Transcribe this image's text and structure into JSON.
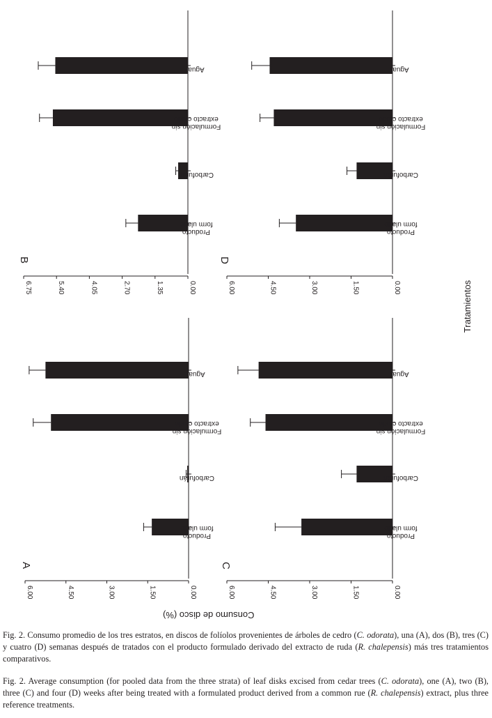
{
  "figure": {
    "y_axis_label": "Consumo de disco (%)",
    "x_axis_label": "Tratamientos"
  },
  "chart_data": [
    {
      "type": "bar",
      "panel": "A",
      "categories": [
        "Producto form ulado",
        "Carbofurán",
        "Formulación sin extracto crudo",
        "Agua"
      ],
      "values": [
        1.35,
        0.05,
        5.05,
        5.25
      ],
      "errors": [
        0.3,
        0.04,
        0.65,
        0.6
      ],
      "ylim": [
        0,
        6
      ],
      "yticks": [
        "6.00",
        "4.50",
        "3.00",
        "1.50",
        "0.00"
      ],
      "xlabel": "Tratamientos",
      "ylabel": "Consumo de disco (%)"
    },
    {
      "type": "bar",
      "panel": "B",
      "categories": [
        "Producto form ulado",
        "Carbofurán",
        "Formulación sin extracto crudo",
        "Agua"
      ],
      "values": [
        2.05,
        0.4,
        5.55,
        5.45
      ],
      "errors": [
        0.5,
        0.1,
        0.55,
        0.7
      ],
      "ylim": [
        0,
        6.75
      ],
      "yticks": [
        "6.75",
        "5.40",
        "4.05",
        "2.70",
        "1.35",
        "0.00"
      ],
      "xlabel": "Tratamientos",
      "ylabel": "Consumo de disco (%)"
    },
    {
      "type": "bar",
      "panel": "C",
      "categories": [
        "Producto form ulado",
        "Carbofurán",
        "Formulación sin extracto crudo",
        "Agua"
      ],
      "values": [
        3.3,
        1.3,
        4.6,
        4.85
      ],
      "errors": [
        0.95,
        0.55,
        0.55,
        0.75
      ],
      "ylim": [
        0,
        6
      ],
      "yticks": [
        "6.00",
        "4.50",
        "3.00",
        "1.50",
        "0.00"
      ],
      "xlabel": "Tratamientos",
      "ylabel": "Consumo de disco (%)"
    },
    {
      "type": "bar",
      "panel": "D",
      "categories": [
        "Producto form ulado",
        "Carbofurán",
        "Formulación sin extracto crudo",
        "Agua"
      ],
      "values": [
        3.5,
        1.3,
        4.3,
        4.45
      ],
      "errors": [
        0.6,
        0.35,
        0.5,
        0.65
      ],
      "ylim": [
        0,
        6
      ],
      "yticks": [
        "6.00",
        "4.50",
        "3.00",
        "1.50",
        "0.00"
      ],
      "xlabel": "Tratamientos",
      "ylabel": "Consumo de disco (%)"
    }
  ],
  "captions": {
    "es_1": "Fig. 2. Consumo promedio de los tres estratos, en discos de folíolos provenientes de árboles de cedro (",
    "es_2": "C. odorata",
    "es_3": "), una (A), dos (B), tres (C) y cuatro (D) semanas después de tratados con el producto formulado derivado del extracto de ruda (",
    "es_4": "R. chalepensis",
    "es_5": ") más tres tratamientos comparativos.",
    "en_1": "Fig. 2. Average consumption (for pooled data from the three strata) of leaf disks excised from cedar trees (",
    "en_2": "C. odorata",
    "en_3": "), one (A), two (B), three (C) and four (D) weeks after being treated with a formulated product derived from a common rue (",
    "en_4": "R. chalepensis",
    "en_5": ") extract, plus three reference treatments."
  }
}
